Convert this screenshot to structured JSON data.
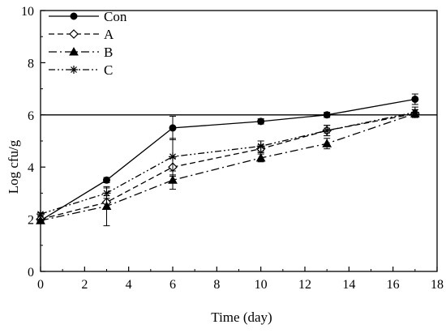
{
  "chart_data": {
    "type": "line",
    "title": "",
    "xlabel": "Time (day)",
    "ylabel": "Log cfu/g",
    "xlim": [
      0,
      18
    ],
    "ylim": [
      0,
      10
    ],
    "xticks": [
      0,
      2,
      4,
      6,
      8,
      10,
      12,
      14,
      16,
      18
    ],
    "yticks": [
      0,
      2,
      4,
      6,
      8,
      10
    ],
    "grid": false,
    "legend": "top-left",
    "reference_line": {
      "y": 6
    },
    "series": [
      {
        "name": "Con",
        "marker": "filled-circle",
        "dash": "solid",
        "x": [
          0,
          3,
          6,
          10,
          13,
          17
        ],
        "y": [
          1.95,
          3.5,
          5.5,
          5.75,
          6.0,
          6.6
        ],
        "err": [
          0.05,
          0.1,
          0.45,
          0.1,
          0.1,
          0.2
        ]
      },
      {
        "name": "A",
        "marker": "open-diamond",
        "dash": "dashed",
        "x": [
          0,
          3,
          6,
          10,
          13,
          17
        ],
        "y": [
          2.0,
          2.65,
          4.0,
          4.7,
          5.4,
          6.05
        ],
        "err": [
          0.05,
          0.25,
          0.35,
          0.15,
          0.2,
          0.15
        ]
      },
      {
        "name": "B",
        "marker": "filled-triangle",
        "dash": "dashdot",
        "x": [
          0,
          3,
          6,
          10,
          13,
          17
        ],
        "y": [
          1.95,
          2.5,
          3.5,
          4.35,
          4.9,
          6.05
        ],
        "err": [
          0.05,
          0.75,
          0.35,
          0.15,
          0.2,
          0.15
        ]
      },
      {
        "name": "C",
        "marker": "asterisk",
        "dash": "dashdotdot",
        "x": [
          0,
          3,
          6,
          10,
          13,
          17
        ],
        "y": [
          2.2,
          3.0,
          4.4,
          4.8,
          5.4,
          6.1
        ],
        "err": [
          0.05,
          0.2,
          0.7,
          0.2,
          0.2,
          0.2
        ]
      }
    ]
  }
}
